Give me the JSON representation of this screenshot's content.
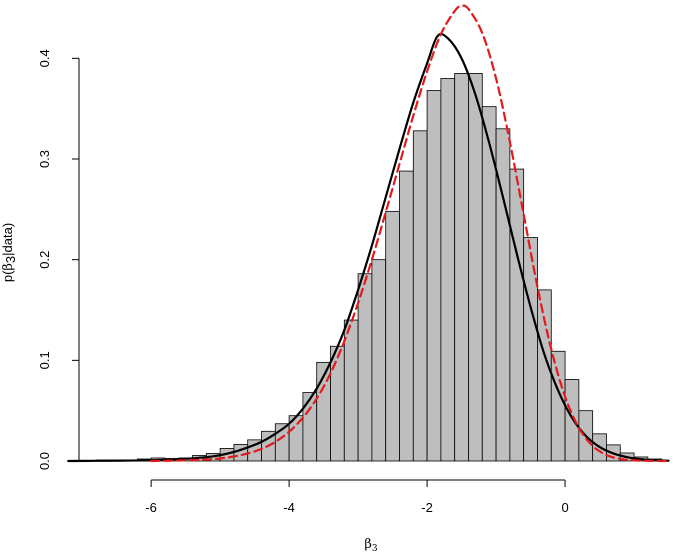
{
  "chart_data": {
    "type": "bar",
    "title": "",
    "xlabel": "β3",
    "xlabel_base": "β",
    "xlabel_sub": "3",
    "ylabel": "p(β3|data)",
    "ylabel_parts": [
      "p(",
      "β",
      "3",
      "|data)"
    ],
    "xlim": [
      -7.35,
      1.55
    ],
    "ylim": [
      0,
      0.45
    ],
    "xticks": [
      -6,
      -4,
      -2,
      0
    ],
    "xtick_labels": [
      "-6",
      "-4",
      "-2",
      "0"
    ],
    "yticks": [
      0.0,
      0.1,
      0.2,
      0.3,
      0.4
    ],
    "ytick_labels": [
      "0.0",
      "0.1",
      "0.2",
      "0.3",
      "0.4"
    ],
    "grid": false,
    "colors": {
      "bar_fill": "#bebebe",
      "bar_stroke": "#000000",
      "solid_curve": "#000000",
      "dashed_curve": "#e31a1c"
    },
    "histogram": {
      "bin_width": 0.2,
      "bins": [
        {
          "x0": -7.2,
          "x1": -7.0,
          "density": 0.0005
        },
        {
          "x0": -7.0,
          "x1": -6.8,
          "density": 0.0005
        },
        {
          "x0": -6.8,
          "x1": -6.6,
          "density": 0.001
        },
        {
          "x0": -6.6,
          "x1": -6.4,
          "density": 0.001
        },
        {
          "x0": -6.4,
          "x1": -6.2,
          "density": 0.001
        },
        {
          "x0": -6.2,
          "x1": -6.0,
          "density": 0.002
        },
        {
          "x0": -6.0,
          "x1": -5.8,
          "density": 0.003
        },
        {
          "x0": -5.8,
          "x1": -5.6,
          "density": 0.0025
        },
        {
          "x0": -5.6,
          "x1": -5.4,
          "density": 0.003
        },
        {
          "x0": -5.4,
          "x1": -5.2,
          "density": 0.0055
        },
        {
          "x0": -5.2,
          "x1": -5.0,
          "density": 0.0075
        },
        {
          "x0": -5.0,
          "x1": -4.8,
          "density": 0.0125
        },
        {
          "x0": -4.8,
          "x1": -4.6,
          "density": 0.0165
        },
        {
          "x0": -4.6,
          "x1": -4.4,
          "density": 0.021
        },
        {
          "x0": -4.4,
          "x1": -4.2,
          "density": 0.0295
        },
        {
          "x0": -4.2,
          "x1": -4.0,
          "density": 0.037
        },
        {
          "x0": -4.0,
          "x1": -3.8,
          "density": 0.045
        },
        {
          "x0": -3.8,
          "x1": -3.6,
          "density": 0.068
        },
        {
          "x0": -3.6,
          "x1": -3.4,
          "density": 0.098
        },
        {
          "x0": -3.4,
          "x1": -3.2,
          "density": 0.114
        },
        {
          "x0": -3.2,
          "x1": -3.0,
          "density": 0.14
        },
        {
          "x0": -3.0,
          "x1": -2.8,
          "density": 0.186
        },
        {
          "x0": -2.8,
          "x1": -2.6,
          "density": 0.2
        },
        {
          "x0": -2.6,
          "x1": -2.4,
          "density": 0.248
        },
        {
          "x0": -2.4,
          "x1": -2.2,
          "density": 0.288
        },
        {
          "x0": -2.2,
          "x1": -2.0,
          "density": 0.328
        },
        {
          "x0": -2.0,
          "x1": -1.8,
          "density": 0.368
        },
        {
          "x0": -1.8,
          "x1": -1.6,
          "density": 0.38
        },
        {
          "x0": -1.6,
          "x1": -1.4,
          "density": 0.385
        },
        {
          "x0": -1.4,
          "x1": -1.2,
          "density": 0.385
        },
        {
          "x0": -1.2,
          "x1": -1.0,
          "density": 0.352
        },
        {
          "x0": -1.0,
          "x1": -0.8,
          "density": 0.33
        },
        {
          "x0": -0.8,
          "x1": -0.6,
          "density": 0.29
        },
        {
          "x0": -0.6,
          "x1": -0.4,
          "density": 0.222
        },
        {
          "x0": -0.4,
          "x1": -0.2,
          "density": 0.17
        },
        {
          "x0": -0.2,
          "x1": 0.0,
          "density": 0.109
        },
        {
          "x0": 0.0,
          "x1": 0.2,
          "density": 0.081
        },
        {
          "x0": 0.2,
          "x1": 0.4,
          "density": 0.05
        },
        {
          "x0": 0.4,
          "x1": 0.6,
          "density": 0.027
        },
        {
          "x0": 0.6,
          "x1": 0.8,
          "density": 0.016
        },
        {
          "x0": 0.8,
          "x1": 1.0,
          "density": 0.008
        },
        {
          "x0": 1.0,
          "x1": 1.2,
          "density": 0.004
        },
        {
          "x0": 1.2,
          "x1": 1.4,
          "density": 0.002
        }
      ]
    },
    "series": [
      {
        "style": "solid",
        "color": "#000000",
        "x": [
          -7.2,
          -6.8,
          -6.4,
          -6.0,
          -5.6,
          -5.2,
          -5.0,
          -4.8,
          -4.6,
          -4.4,
          -4.2,
          -4.0,
          -3.8,
          -3.6,
          -3.4,
          -3.2,
          -3.0,
          -2.8,
          -2.6,
          -2.4,
          -2.2,
          -2.0,
          -1.85,
          -1.7,
          -1.5,
          -1.3,
          -1.1,
          -0.9,
          -0.7,
          -0.5,
          -0.3,
          -0.1,
          0.1,
          0.3,
          0.5,
          0.7,
          0.9,
          1.1,
          1.3,
          1.5
        ],
        "y": [
          0.0,
          0.0002,
          0.0004,
          0.0008,
          0.0018,
          0.0038,
          0.0058,
          0.009,
          0.0135,
          0.019,
          0.027,
          0.037,
          0.052,
          0.072,
          0.098,
          0.13,
          0.17,
          0.214,
          0.262,
          0.31,
          0.356,
          0.395,
          0.422,
          0.42,
          0.4,
          0.364,
          0.316,
          0.262,
          0.206,
          0.153,
          0.106,
          0.07,
          0.043,
          0.025,
          0.014,
          0.0075,
          0.0038,
          0.0018,
          0.0008,
          0.0003
        ]
      },
      {
        "style": "dashed",
        "color": "#e31a1c",
        "x": [
          -6.0,
          -5.6,
          -5.2,
          -5.0,
          -4.8,
          -4.6,
          -4.4,
          -4.2,
          -4.0,
          -3.8,
          -3.6,
          -3.4,
          -3.2,
          -3.0,
          -2.8,
          -2.6,
          -2.4,
          -2.2,
          -2.0,
          -1.8,
          -1.6,
          -1.5,
          -1.4,
          -1.2,
          -1.0,
          -0.8,
          -0.6,
          -0.4,
          -0.2,
          0.0,
          0.2,
          0.4,
          0.6,
          0.8,
          1.0,
          1.2,
          1.5
        ],
        "y": [
          0.0,
          0.0005,
          0.0015,
          0.0025,
          0.0045,
          0.0075,
          0.012,
          0.019,
          0.029,
          0.043,
          0.062,
          0.087,
          0.119,
          0.157,
          0.2,
          0.247,
          0.295,
          0.343,
          0.387,
          0.424,
          0.447,
          0.452,
          0.449,
          0.425,
          0.38,
          0.317,
          0.245,
          0.173,
          0.111,
          0.064,
          0.033,
          0.015,
          0.006,
          0.002,
          0.0007,
          0.0002,
          0.0
        ]
      }
    ]
  }
}
